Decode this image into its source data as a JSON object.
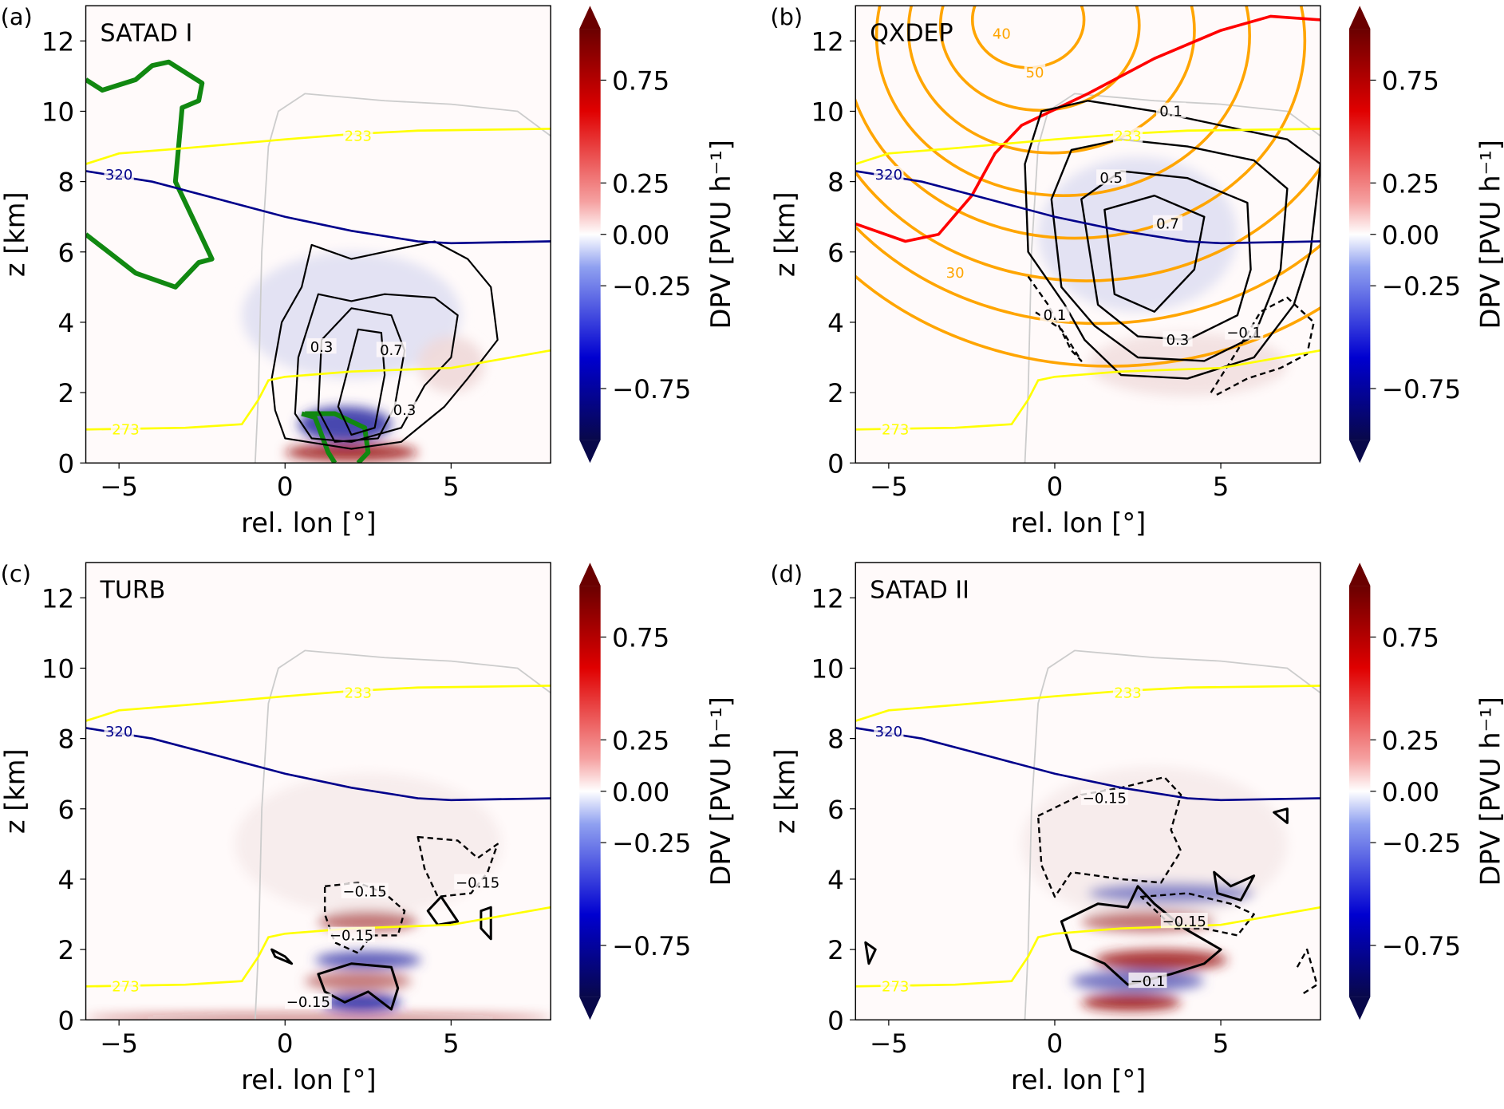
{
  "figure": {
    "xlabel": "rel. lon [°]",
    "ylabel": "z [km]",
    "colorbar_label": "DPV [PVU h⁻¹]",
    "colorbar_ticks": [
      "0.75",
      "0.25",
      "0.00",
      "−0.25",
      "−0.75"
    ],
    "colorbar_tick_values": [
      0.75,
      0.25,
      0.0,
      -0.25,
      -0.75
    ],
    "colorbar_range": [
      -1,
      1
    ],
    "colors": {
      "isotherm": "#ffff00",
      "isentrope": "#00008b",
      "cloud": "#cccccc",
      "orange": "#ffa500",
      "red": "#ff0000",
      "green": "#118811"
    }
  },
  "chart_data": [
    {
      "type": "heatmap",
      "panel": "(a)",
      "title": "SATAD I",
      "xlabel": "rel. lon [°]",
      "ylabel": "z [km]",
      "xlim": [
        -6,
        8
      ],
      "ylim": [
        0,
        13
      ],
      "xticks": [
        -5,
        0,
        5
      ],
      "xtick_labels": [
        "−5",
        "0",
        "5"
      ],
      "yticks": [
        0,
        2,
        4,
        6,
        8,
        10,
        12
      ],
      "ytick_labels": [
        "0",
        "2",
        "4",
        "6",
        "8",
        "10",
        "12"
      ],
      "contour_labels": [
        {
          "text": "233",
          "x": 2.2,
          "y": 9.3,
          "color": "#ffff00"
        },
        {
          "text": "273",
          "x": -4.8,
          "y": 0.95,
          "color": "#ffff00"
        },
        {
          "text": "320",
          "x": -5.0,
          "y": 8.2,
          "color": "#00008b"
        },
        {
          "text": "0.7",
          "x": 3.2,
          "y": 3.2,
          "color": "#000"
        },
        {
          "text": "0.3",
          "x": 3.6,
          "y": 1.5,
          "color": "#000"
        },
        {
          "text": "0.3",
          "x": 1.1,
          "y": 3.3,
          "color": "#000"
        }
      ],
      "shading": [
        {
          "x": 2.0,
          "y": 4.2,
          "rx": 3.3,
          "ry": 1.8,
          "v": -0.12
        },
        {
          "x": 1.8,
          "y": 1.1,
          "rx": 1.4,
          "ry": 0.5,
          "v": -0.8
        },
        {
          "x": 2.0,
          "y": 0.3,
          "rx": 2.0,
          "ry": 0.25,
          "v": 0.9
        },
        {
          "x": 5.0,
          "y": 2.8,
          "rx": 1.0,
          "ry": 0.8,
          "v": 0.15
        }
      ]
    },
    {
      "type": "heatmap",
      "panel": "(b)",
      "title": "QXDEP",
      "xlabel": "rel. lon [°]",
      "ylabel": "z [km]",
      "xlim": [
        -6,
        8
      ],
      "ylim": [
        0,
        13
      ],
      "xticks": [
        -5,
        0,
        5
      ],
      "xtick_labels": [
        "−5",
        "0",
        "5"
      ],
      "yticks": [
        0,
        2,
        4,
        6,
        8,
        10,
        12
      ],
      "ytick_labels": [
        "0",
        "2",
        "4",
        "6",
        "8",
        "10",
        "12"
      ],
      "contour_labels": [
        {
          "text": "233",
          "x": 2.2,
          "y": 9.3,
          "color": "#ffff00"
        },
        {
          "text": "273",
          "x": -4.8,
          "y": 0.95,
          "color": "#ffff00"
        },
        {
          "text": "320",
          "x": -5.0,
          "y": 8.2,
          "color": "#00008b"
        },
        {
          "text": "40",
          "x": -1.6,
          "y": 12.2,
          "color": "#ffa500"
        },
        {
          "text": "50",
          "x": -0.6,
          "y": 11.1,
          "color": "#ffa500"
        },
        {
          "text": "30",
          "x": -3.0,
          "y": 5.4,
          "color": "#ffa500"
        },
        {
          "text": "0.1",
          "x": 3.5,
          "y": 10.0,
          "color": "#000"
        },
        {
          "text": "0.5",
          "x": 1.7,
          "y": 8.1,
          "color": "#000"
        },
        {
          "text": "0.7",
          "x": 3.4,
          "y": 6.8,
          "color": "#000"
        },
        {
          "text": "0.3",
          "x": 3.7,
          "y": 3.5,
          "color": "#000"
        },
        {
          "text": "0.1",
          "x": 0.0,
          "y": 4.2,
          "color": "#000"
        },
        {
          "text": "−0.1",
          "x": 5.7,
          "y": 3.7,
          "color": "#000"
        }
      ],
      "shading": [
        {
          "x": 2.5,
          "y": 6.5,
          "rx": 3.0,
          "ry": 2.2,
          "v": -0.12
        },
        {
          "x": 4.0,
          "y": 2.8,
          "rx": 3.0,
          "ry": 0.9,
          "v": 0.12
        }
      ]
    },
    {
      "type": "heatmap",
      "panel": "(c)",
      "title": "TURB",
      "xlabel": "rel. lon [°]",
      "ylabel": "z [km]",
      "xlim": [
        -6,
        8
      ],
      "ylim": [
        0,
        13
      ],
      "xticks": [
        -5,
        0,
        5
      ],
      "xtick_labels": [
        "−5",
        "0",
        "5"
      ],
      "yticks": [
        0,
        2,
        4,
        6,
        8,
        10,
        12
      ],
      "ytick_labels": [
        "0",
        "2",
        "4",
        "6",
        "8",
        "10",
        "12"
      ],
      "contour_labels": [
        {
          "text": "233",
          "x": 2.2,
          "y": 9.3,
          "color": "#ffff00"
        },
        {
          "text": "273",
          "x": -4.8,
          "y": 0.95,
          "color": "#ffff00"
        },
        {
          "text": "320",
          "x": -5.0,
          "y": 8.2,
          "color": "#00008b"
        },
        {
          "text": "−0.15",
          "x": 2.4,
          "y": 3.65,
          "color": "#000"
        },
        {
          "text": "−0.15",
          "x": 5.8,
          "y": 3.9,
          "color": "#000"
        },
        {
          "text": "−0.15",
          "x": 2.0,
          "y": 2.4,
          "color": "#000"
        },
        {
          "text": "−0.15",
          "x": 0.7,
          "y": 0.5,
          "color": "#000"
        }
      ],
      "shading": [
        {
          "x": 2.5,
          "y": 5.0,
          "rx": 4.0,
          "ry": 2.0,
          "v": 0.08
        },
        {
          "x": 2.5,
          "y": 2.8,
          "rx": 1.5,
          "ry": 0.3,
          "v": 0.6
        },
        {
          "x": 2.5,
          "y": 1.7,
          "rx": 1.6,
          "ry": 0.25,
          "v": -0.7
        },
        {
          "x": 2.2,
          "y": 1.1,
          "rx": 1.6,
          "ry": 0.25,
          "v": 0.6
        },
        {
          "x": 2.3,
          "y": 0.5,
          "rx": 1.2,
          "ry": 0.25,
          "v": -0.85
        },
        {
          "x": 1.0,
          "y": 0.05,
          "rx": 7.0,
          "ry": 0.08,
          "v": 0.9
        }
      ]
    },
    {
      "type": "heatmap",
      "panel": "(d)",
      "title": "SATAD II",
      "xlabel": "rel. lon [°]",
      "ylabel": "z [km]",
      "xlim": [
        -6,
        8
      ],
      "ylim": [
        0,
        13
      ],
      "xticks": [
        -5,
        0,
        5
      ],
      "xtick_labels": [
        "−5",
        "0",
        "5"
      ],
      "yticks": [
        0,
        2,
        4,
        6,
        8,
        10,
        12
      ],
      "ytick_labels": [
        "0",
        "2",
        "4",
        "6",
        "8",
        "10",
        "12"
      ],
      "contour_labels": [
        {
          "text": "233",
          "x": 2.2,
          "y": 9.3,
          "color": "#ffff00"
        },
        {
          "text": "273",
          "x": -4.8,
          "y": 0.95,
          "color": "#ffff00"
        },
        {
          "text": "320",
          "x": -5.0,
          "y": 8.2,
          "color": "#00008b"
        },
        {
          "text": "−0.15",
          "x": 1.5,
          "y": 6.3,
          "color": "#000"
        },
        {
          "text": "−0.15",
          "x": 3.9,
          "y": 2.8,
          "color": "#000"
        },
        {
          "text": "−0.1",
          "x": 2.8,
          "y": 1.1,
          "color": "#000"
        }
      ],
      "shading": [
        {
          "x": 3.0,
          "y": 5.0,
          "rx": 4.0,
          "ry": 2.2,
          "v": 0.08
        },
        {
          "x": 3.5,
          "y": 3.6,
          "rx": 2.5,
          "ry": 0.3,
          "v": -0.5
        },
        {
          "x": 2.8,
          "y": 2.8,
          "rx": 2.0,
          "ry": 0.3,
          "v": 0.6
        },
        {
          "x": 3.2,
          "y": 1.7,
          "rx": 2.0,
          "ry": 0.3,
          "v": 0.85
        },
        {
          "x": 2.5,
          "y": 1.1,
          "rx": 2.0,
          "ry": 0.3,
          "v": -0.6
        },
        {
          "x": 2.3,
          "y": 0.5,
          "rx": 1.5,
          "ry": 0.25,
          "v": 0.9
        }
      ]
    }
  ],
  "shared_lines": {
    "isotherm_233": [
      [
        -6,
        8.5
      ],
      [
        -5,
        8.8
      ],
      [
        -3,
        8.95
      ],
      [
        0,
        9.2
      ],
      [
        2,
        9.35
      ],
      [
        4,
        9.45
      ],
      [
        8,
        9.5
      ]
    ],
    "isotherm_273": [
      [
        -6,
        0.95
      ],
      [
        -3,
        1.0
      ],
      [
        -1.3,
        1.1
      ],
      [
        -0.8,
        1.8
      ],
      [
        -0.5,
        2.35
      ],
      [
        0,
        2.45
      ],
      [
        2,
        2.6
      ],
      [
        5,
        2.7
      ],
      [
        8,
        3.2
      ]
    ],
    "isentrope_320": [
      [
        -6,
        8.3
      ],
      [
        -4,
        8.0
      ],
      [
        -2,
        7.5
      ],
      [
        0,
        7.0
      ],
      [
        2,
        6.6
      ],
      [
        4,
        6.3
      ],
      [
        5,
        6.25
      ],
      [
        8,
        6.3
      ]
    ],
    "cloud_edge": [
      [
        -0.9,
        0
      ],
      [
        -0.8,
        2
      ],
      [
        -0.7,
        6
      ],
      [
        -0.5,
        9
      ],
      [
        -0.2,
        10
      ],
      [
        0.6,
        10.5
      ],
      [
        3,
        10.3
      ],
      [
        5,
        10.2
      ],
      [
        7,
        10
      ],
      [
        8,
        9.3
      ]
    ]
  }
}
